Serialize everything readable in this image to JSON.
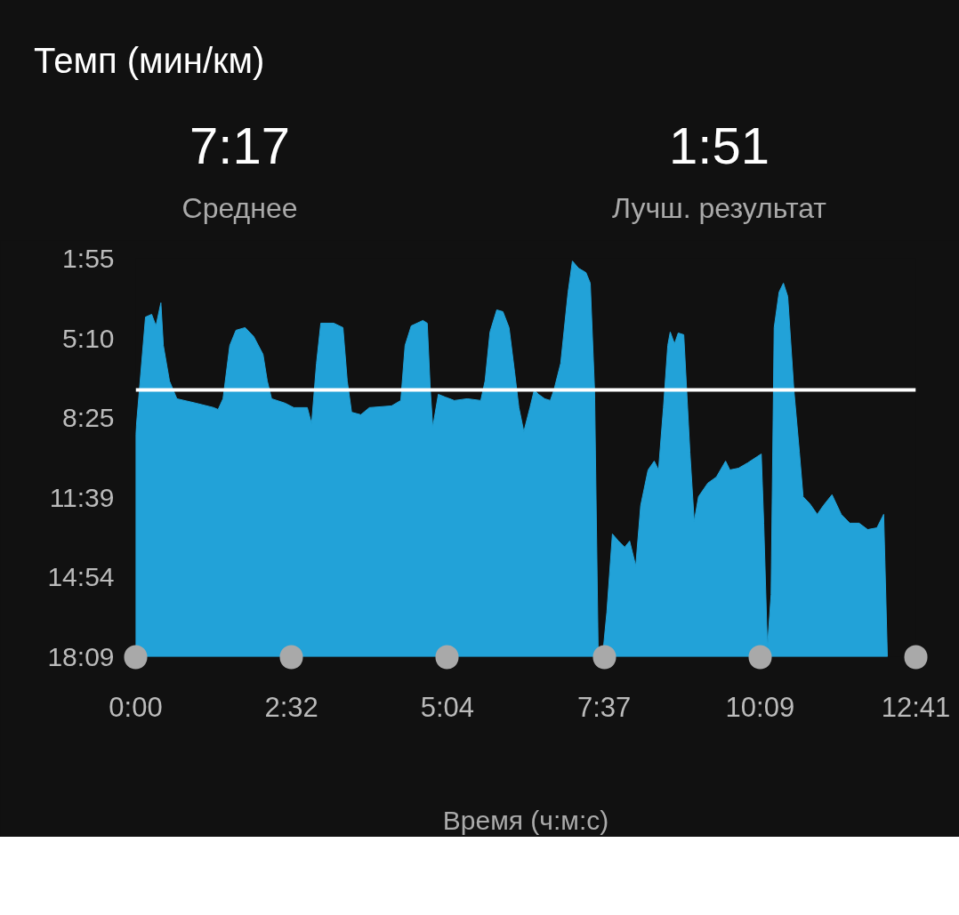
{
  "chart_data": {
    "type": "area",
    "title": "Темп (мин/км)",
    "xlabel": "Время (ч:м:с)",
    "annotations": [
      "7:17",
      "Среднее",
      "1:51",
      "Лучш. результат"
    ],
    "xlim": [
      0,
      12.683
    ],
    "xticks": [
      {
        "value": 0,
        "label": "0:00"
      },
      {
        "value": 2.533,
        "label": "2:32"
      },
      {
        "value": 5.067,
        "label": "5:04"
      },
      {
        "value": 7.617,
        "label": "7:37"
      },
      {
        "value": 10.15,
        "label": "10:09"
      },
      {
        "value": 12.683,
        "label": "12:41"
      }
    ],
    "ylim": [
      18.15,
      1.917
    ],
    "yticks": [
      {
        "value": 1.917,
        "label": "1:55"
      },
      {
        "value": 5.167,
        "label": "5:10"
      },
      {
        "value": 8.417,
        "label": "8:25"
      },
      {
        "value": 11.65,
        "label": "11:39"
      },
      {
        "value": 14.9,
        "label": "14:54"
      },
      {
        "value": 18.15,
        "label": "18:09"
      }
    ],
    "grid": false,
    "ref_lines": [
      {
        "axis": "y",
        "value": 7.283,
        "color": "#ffffff"
      }
    ],
    "series": [
      {
        "color": "#22a2d8",
        "x": [
          0.0,
          0.0,
          0.16,
          0.26,
          0.33,
          0.41,
          0.45,
          0.55,
          0.67,
          0.98,
          1.27,
          1.34,
          1.42,
          1.53,
          1.63,
          1.78,
          1.92,
          2.07,
          2.14,
          2.21,
          2.43,
          2.57,
          2.79,
          2.86,
          2.94,
          3.01,
          3.22,
          3.37,
          3.44,
          3.51,
          3.66,
          3.8,
          4.16,
          4.31,
          4.38,
          4.48,
          4.67,
          4.74,
          4.79,
          4.83,
          4.92,
          5.03,
          5.18,
          5.39,
          5.61,
          5.68,
          5.76,
          5.87,
          5.97,
          6.07,
          6.16,
          6.23,
          6.31,
          6.41,
          6.48,
          6.55,
          6.65,
          6.74,
          6.8,
          6.91,
          7.03,
          7.1,
          7.2,
          7.32,
          7.39,
          7.46,
          7.52,
          7.59,
          7.66,
          7.75,
          7.85,
          7.95,
          8.03,
          8.13,
          8.21,
          8.33,
          8.43,
          8.5,
          8.58,
          8.65,
          8.69,
          8.76,
          8.82,
          8.91,
          9.01,
          9.08,
          9.15,
          9.3,
          9.44,
          9.59,
          9.66,
          9.8,
          9.95,
          10.17,
          10.21,
          10.27,
          10.33,
          10.38,
          10.46,
          10.53,
          10.6,
          10.7,
          10.79,
          10.85,
          10.96,
          11.08,
          11.18,
          11.32,
          11.47,
          11.61,
          11.76,
          11.9,
          12.05,
          12.16,
          12.22
        ],
        "values": [
          18.15,
          9.09,
          4.31,
          4.2,
          4.67,
          3.73,
          5.47,
          6.92,
          7.64,
          7.82,
          8.0,
          8.08,
          7.64,
          5.47,
          4.85,
          4.74,
          5.11,
          5.83,
          6.92,
          7.64,
          7.82,
          8.0,
          8.0,
          8.66,
          6.19,
          4.56,
          4.56,
          4.74,
          6.92,
          8.19,
          8.29,
          8.0,
          7.93,
          7.71,
          5.47,
          4.67,
          4.45,
          4.56,
          7.28,
          8.8,
          7.46,
          7.57,
          7.71,
          7.64,
          7.71,
          6.92,
          4.92,
          4.02,
          4.09,
          4.74,
          6.55,
          8.0,
          8.98,
          8.0,
          7.28,
          7.46,
          7.64,
          7.71,
          7.28,
          6.19,
          3.29,
          2.03,
          2.32,
          2.5,
          2.93,
          7.28,
          18.15,
          18.15,
          16.34,
          13.15,
          13.44,
          13.69,
          13.44,
          14.45,
          11.99,
          10.54,
          10.18,
          10.54,
          8.0,
          5.47,
          4.92,
          5.4,
          4.96,
          5.03,
          9.82,
          12.64,
          11.63,
          11.08,
          10.83,
          10.18,
          10.54,
          10.47,
          10.25,
          9.89,
          12.71,
          17.79,
          15.61,
          4.74,
          3.29,
          2.93,
          3.47,
          7.28,
          9.82,
          11.63,
          11.92,
          12.35,
          11.99,
          11.55,
          12.35,
          12.71,
          12.71,
          12.97,
          12.9,
          12.35,
          18.15
        ]
      }
    ]
  }
}
